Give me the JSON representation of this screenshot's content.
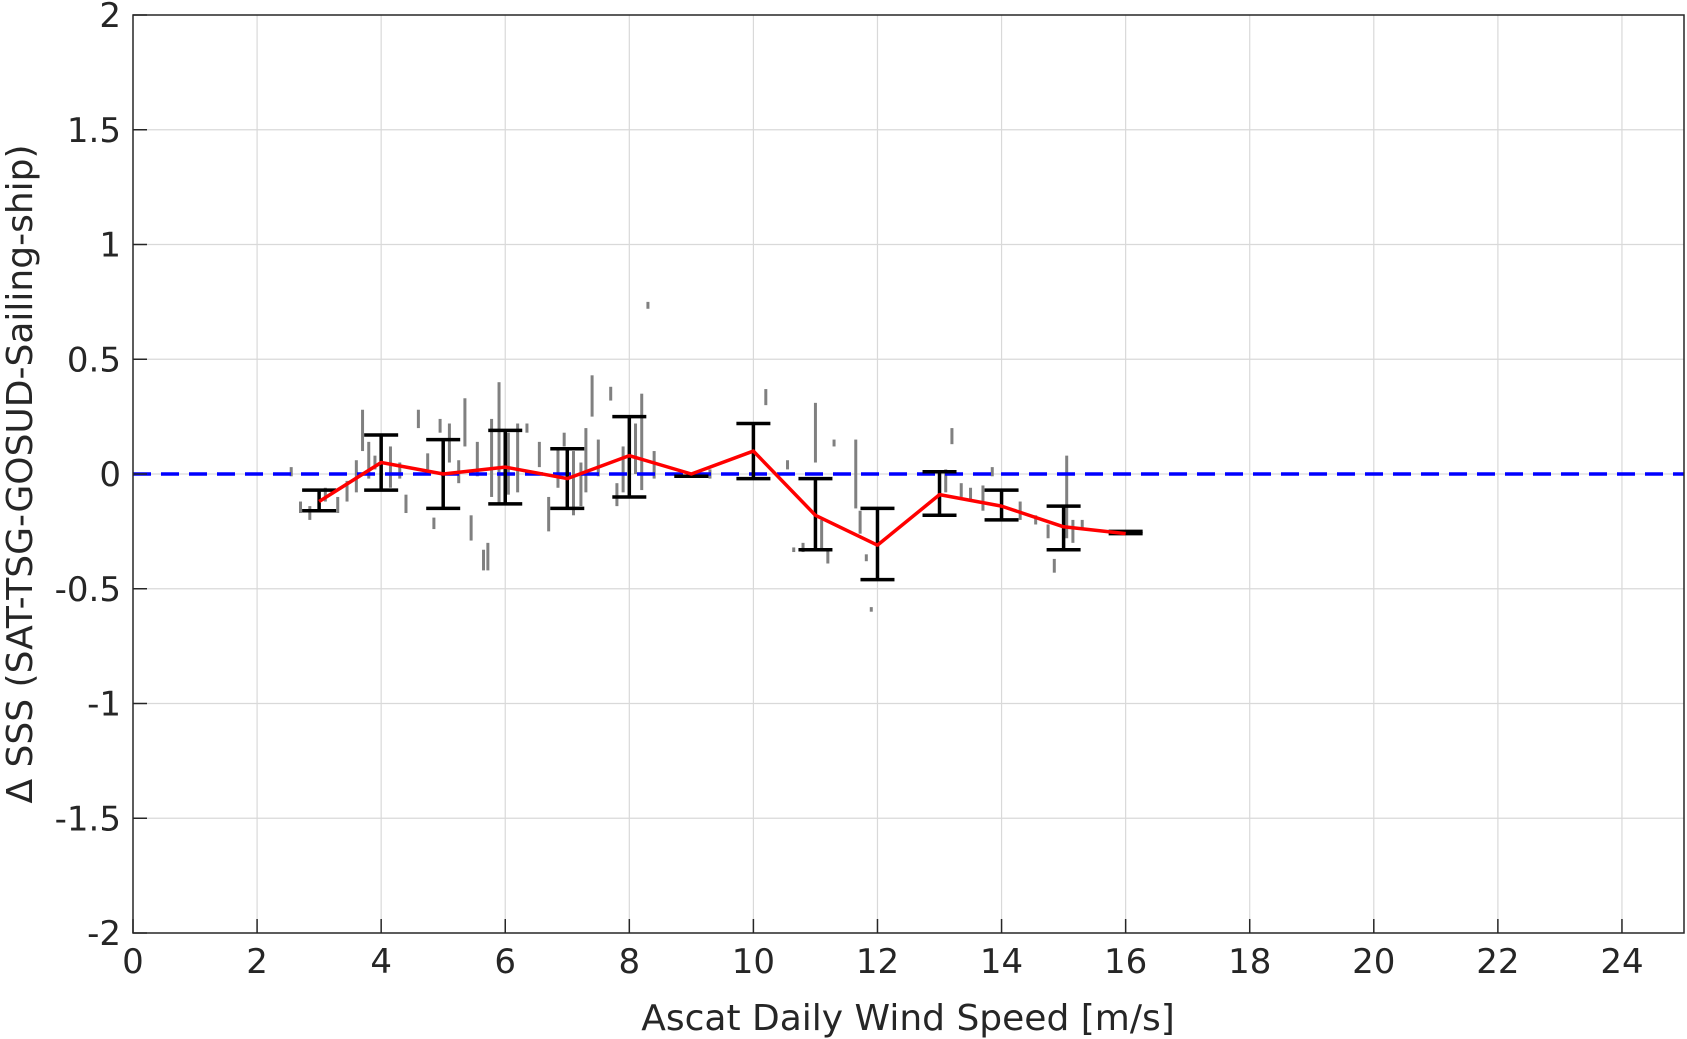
{
  "chart_data": {
    "type": "scatter",
    "xlabel": "Ascat Daily Wind Speed [m/s]",
    "ylabel": "Δ SSS (SAT-TSG-GOSUD-Sailing-ship)",
    "xlim": [
      0,
      25
    ],
    "ylim": [
      -2,
      2
    ],
    "xticks": [
      0,
      2,
      4,
      6,
      8,
      10,
      12,
      14,
      16,
      18,
      20,
      22,
      24
    ],
    "xtick_labels": [
      "0",
      "2",
      "4",
      "6",
      "8",
      "10",
      "12",
      "14",
      "16",
      "18",
      "20",
      "22",
      "24"
    ],
    "yticks": [
      -2,
      -1.5,
      -1,
      -0.5,
      0,
      0.5,
      1,
      1.5,
      2
    ],
    "ytick_labels": [
      "-2",
      "-1.5",
      "-1",
      "-0.5",
      "0",
      "0.5",
      "1",
      "1.5",
      "2"
    ],
    "grid": true,
    "colors": {
      "scatter": "#808080",
      "mean_line": "#ff0000",
      "error_bars": "#000000",
      "zero_line": "#0000ff",
      "grid": "#d9d9d9",
      "axes": "#262626"
    },
    "zero_reference": {
      "y": 0,
      "style": "dashed"
    },
    "mean_line": {
      "x": [
        3,
        4,
        5,
        6,
        7,
        8,
        9,
        10,
        11,
        12,
        13,
        14,
        15,
        16
      ],
      "y": [
        -0.12,
        0.05,
        0.0,
        0.03,
        -0.02,
        0.08,
        0.0,
        0.1,
        -0.18,
        -0.31,
        -0.09,
        -0.14,
        -0.23,
        -0.26
      ]
    },
    "error_bars": [
      {
        "x": 3,
        "low": -0.16,
        "high": -0.07
      },
      {
        "x": 4,
        "low": -0.07,
        "high": 0.17
      },
      {
        "x": 5,
        "low": -0.15,
        "high": 0.15
      },
      {
        "x": 6,
        "low": -0.13,
        "high": 0.19
      },
      {
        "x": 7,
        "low": -0.15,
        "high": 0.11
      },
      {
        "x": 8,
        "low": -0.1,
        "high": 0.25
      },
      {
        "x": 9,
        "low": -0.01,
        "high": -0.01
      },
      {
        "x": 10,
        "low": -0.02,
        "high": 0.22
      },
      {
        "x": 11,
        "low": -0.33,
        "high": -0.02
      },
      {
        "x": 12,
        "low": -0.46,
        "high": -0.15
      },
      {
        "x": 13,
        "low": -0.18,
        "high": 0.01
      },
      {
        "x": 14,
        "low": -0.2,
        "high": -0.07
      },
      {
        "x": 15,
        "low": -0.33,
        "high": -0.14
      },
      {
        "x": 16,
        "low": -0.26,
        "high": -0.25
      }
    ],
    "scatter": [
      {
        "x": 2.55,
        "y0": -0.01,
        "y1": 0.03
      },
      {
        "x": 2.7,
        "y0": -0.17,
        "y1": -0.12
      },
      {
        "x": 2.85,
        "y0": -0.2,
        "y1": -0.14
      },
      {
        "x": 3.1,
        "y0": -0.12,
        "y1": -0.06
      },
      {
        "x": 3.3,
        "y0": -0.17,
        "y1": -0.1
      },
      {
        "x": 3.45,
        "y0": -0.12,
        "y1": -0.03
      },
      {
        "x": 3.6,
        "y0": -0.08,
        "y1": 0.06
      },
      {
        "x": 3.7,
        "y0": 0.1,
        "y1": 0.28
      },
      {
        "x": 3.8,
        "y0": -0.02,
        "y1": 0.14
      },
      {
        "x": 3.9,
        "y0": 0.02,
        "y1": 0.08
      },
      {
        "x": 4.15,
        "y0": -0.06,
        "y1": 0.12
      },
      {
        "x": 4.3,
        "y0": -0.02,
        "y1": 0.05
      },
      {
        "x": 4.4,
        "y0": -0.17,
        "y1": -0.09
      },
      {
        "x": 4.6,
        "y0": 0.2,
        "y1": 0.28
      },
      {
        "x": 4.75,
        "y0": 0.02,
        "y1": 0.09
      },
      {
        "x": 4.85,
        "y0": -0.24,
        "y1": -0.19
      },
      {
        "x": 4.95,
        "y0": 0.18,
        "y1": 0.24
      },
      {
        "x": 5.1,
        "y0": 0.05,
        "y1": 0.22
      },
      {
        "x": 5.25,
        "y0": -0.04,
        "y1": 0.06
      },
      {
        "x": 5.35,
        "y0": 0.12,
        "y1": 0.33
      },
      {
        "x": 5.45,
        "y0": -0.29,
        "y1": -0.18
      },
      {
        "x": 5.55,
        "y0": -0.01,
        "y1": 0.14
      },
      {
        "x": 5.65,
        "y0": -0.42,
        "y1": -0.33
      },
      {
        "x": 5.72,
        "y0": -0.42,
        "y1": -0.3
      },
      {
        "x": 5.78,
        "y0": -0.1,
        "y1": 0.24
      },
      {
        "x": 5.9,
        "y0": -0.13,
        "y1": 0.4
      },
      {
        "x": 6.05,
        "y0": -0.09,
        "y1": 0.18
      },
      {
        "x": 6.2,
        "y0": -0.08,
        "y1": 0.22
      },
      {
        "x": 6.35,
        "y0": 0.18,
        "y1": 0.22
      },
      {
        "x": 6.55,
        "y0": 0.03,
        "y1": 0.14
      },
      {
        "x": 6.7,
        "y0": -0.25,
        "y1": -0.1
      },
      {
        "x": 6.85,
        "y0": -0.06,
        "y1": 0.11
      },
      {
        "x": 6.95,
        "y0": 0.12,
        "y1": 0.18
      },
      {
        "x": 7.1,
        "y0": -0.18,
        "y1": 0.1
      },
      {
        "x": 7.22,
        "y0": -0.14,
        "y1": 0.05
      },
      {
        "x": 7.3,
        "y0": -0.08,
        "y1": 0.2
      },
      {
        "x": 7.4,
        "y0": 0.25,
        "y1": 0.43
      },
      {
        "x": 7.5,
        "y0": -0.01,
        "y1": 0.15
      },
      {
        "x": 7.7,
        "y0": 0.32,
        "y1": 0.38
      },
      {
        "x": 7.8,
        "y0": -0.14,
        "y1": -0.04
      },
      {
        "x": 7.9,
        "y0": -0.08,
        "y1": 0.12
      },
      {
        "x": 8.1,
        "y0": 0.0,
        "y1": 0.22
      },
      {
        "x": 8.2,
        "y0": -0.07,
        "y1": 0.35
      },
      {
        "x": 8.3,
        "y0": 0.72,
        "y1": 0.75
      },
      {
        "x": 8.4,
        "y0": -0.02,
        "y1": 0.1
      },
      {
        "x": 9.3,
        "y0": -0.02,
        "y1": 0.02
      },
      {
        "x": 10.2,
        "y0": 0.3,
        "y1": 0.37
      },
      {
        "x": 10.55,
        "y0": 0.02,
        "y1": 0.06
      },
      {
        "x": 10.65,
        "y0": -0.34,
        "y1": -0.32
      },
      {
        "x": 10.8,
        "y0": -0.34,
        "y1": -0.3
      },
      {
        "x": 11.0,
        "y0": 0.05,
        "y1": 0.31
      },
      {
        "x": 11.1,
        "y0": -0.33,
        "y1": -0.2
      },
      {
        "x": 11.2,
        "y0": -0.39,
        "y1": -0.33
      },
      {
        "x": 11.3,
        "y0": 0.12,
        "y1": 0.15
      },
      {
        "x": 11.65,
        "y0": -0.15,
        "y1": 0.15
      },
      {
        "x": 11.72,
        "y0": -0.26,
        "y1": -0.16
      },
      {
        "x": 11.82,
        "y0": -0.38,
        "y1": -0.35
      },
      {
        "x": 11.9,
        "y0": -0.6,
        "y1": -0.58
      },
      {
        "x": 13.1,
        "y0": -0.08,
        "y1": 0.02
      },
      {
        "x": 13.2,
        "y0": 0.13,
        "y1": 0.2
      },
      {
        "x": 13.35,
        "y0": -0.1,
        "y1": -0.04
      },
      {
        "x": 13.5,
        "y0": -0.12,
        "y1": -0.06
      },
      {
        "x": 13.7,
        "y0": -0.16,
        "y1": -0.05
      },
      {
        "x": 13.85,
        "y0": -0.01,
        "y1": 0.03
      },
      {
        "x": 14.3,
        "y0": -0.2,
        "y1": -0.12
      },
      {
        "x": 14.55,
        "y0": -0.22,
        "y1": -0.18
      },
      {
        "x": 14.75,
        "y0": -0.28,
        "y1": -0.22
      },
      {
        "x": 14.85,
        "y0": -0.43,
        "y1": -0.37
      },
      {
        "x": 15.05,
        "y0": -0.28,
        "y1": 0.08
      },
      {
        "x": 15.15,
        "y0": -0.3,
        "y1": -0.2
      },
      {
        "x": 15.3,
        "y0": -0.24,
        "y1": -0.2
      }
    ]
  }
}
